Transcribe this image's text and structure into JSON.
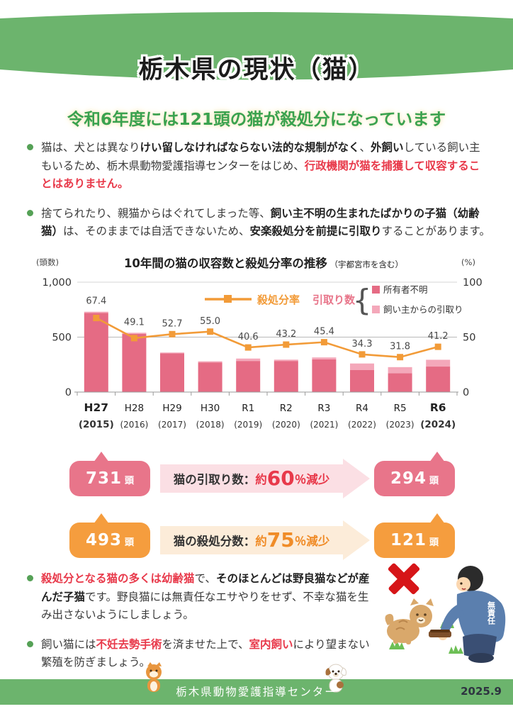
{
  "colors": {
    "header_green": "#6cb46d",
    "key_message_green": "#3aa24f",
    "bar_owner_unknown_pink": "#e56b84",
    "bar_owner_surrender_pink": "#f4a8ba",
    "line_orange": "#f29b38",
    "accent_red": "#e8394a",
    "callout_pink": "#e8758a",
    "callout_orange": "#f59d3e",
    "cross_red": "#d61518"
  },
  "header": {
    "title": "栃木県の現状（猫）"
  },
  "key_message": "令和6年度には121頭の猫が殺処分になっています",
  "bullets_top": [
    {
      "segments": [
        {
          "t": "猫は、犬とは異なり",
          "s": ""
        },
        {
          "t": "けい留しなければならない法的な規制がなく",
          "s": "b"
        },
        {
          "t": "、",
          "s": ""
        },
        {
          "t": "外飼い",
          "s": "b"
        },
        {
          "t": "している飼い主もいるため、栃木県動物愛護指導センターをはじめ、",
          "s": ""
        },
        {
          "t": "行政機関が猫を捕獲して収容することはありません。",
          "s": "rb"
        }
      ]
    },
    {
      "segments": [
        {
          "t": "捨てられたり、親猫からはぐれてしまった等、",
          "s": ""
        },
        {
          "t": "飼い主不明の生まれたばかりの子猫（幼齢猫）",
          "s": "b"
        },
        {
          "t": "は、そのままでは自活できないため、",
          "s": ""
        },
        {
          "t": "安楽殺処分を前提に引取り",
          "s": "b"
        },
        {
          "t": "することがあります。",
          "s": ""
        }
      ]
    }
  ],
  "chart_data": {
    "type": "bar",
    "combo": "stacked bars (left axis, head count) + line (right axis, %)",
    "title": "10年間の猫の収容数と殺処分率の推移",
    "title_note": "（宇都宮市を含む）",
    "left_axis_label": "(頭数)",
    "right_axis_label": "(%)",
    "left_ylim": [
      0,
      1000
    ],
    "right_ylim": [
      0,
      100
    ],
    "left_ticks": [
      "1,000",
      "500",
      "0"
    ],
    "right_ticks": [
      "100",
      "50",
      "0"
    ],
    "categories": [
      "H27",
      "H28",
      "H29",
      "H30",
      "R1",
      "R2",
      "R3",
      "R4",
      "R5",
      "R6"
    ],
    "category_years": [
      "(2015)",
      "(2016)",
      "(2017)",
      "(2018)",
      "(2019)",
      "(2020)",
      "(2021)",
      "(2022)",
      "(2023)",
      "(2024)"
    ],
    "emphasized_indices": [
      0,
      9
    ],
    "series": [
      {
        "name": "所有者不明",
        "color": "#e56b84",
        "values": [
          721,
          530,
          352,
          270,
          283,
          283,
          297,
          200,
          172,
          232
        ]
      },
      {
        "name": "飼い主からの引取り",
        "color": "#f4a8ba",
        "values": [
          10,
          10,
          8,
          10,
          22,
          12,
          18,
          60,
          55,
          62
        ]
      }
    ],
    "bar_totals": [
      731,
      540,
      360,
      280,
      305,
      295,
      315,
      260,
      227,
      294
    ],
    "line": {
      "name": "殺処分率",
      "color": "#f29b38",
      "values": [
        67.4,
        49.1,
        52.7,
        55.0,
        40.6,
        43.2,
        45.4,
        34.3,
        31.8,
        41.2
      ]
    },
    "legend": {
      "bars_group_label": "引取り数"
    }
  },
  "callouts": [
    {
      "name": "intake-decrease",
      "left_value": "731",
      "left_unit": "頭",
      "label": "猫の引取り数：",
      "approx": "約",
      "percent": "60",
      "suffix": "％減少",
      "right_value": "294",
      "right_unit": "頭",
      "bubble_color": "#e8758a",
      "arrow_bg": "#fbdfe4",
      "accent": "#e8394a"
    },
    {
      "name": "euthanasia-decrease",
      "left_value": "493",
      "left_unit": "頭",
      "label": "猫の殺処分数：",
      "approx": "約",
      "percent": "75",
      "suffix": "％減少",
      "right_value": "121",
      "right_unit": "頭",
      "bubble_color": "#f59d3e",
      "arrow_bg": "#fcecd9",
      "accent": "#f08c28"
    }
  ],
  "bullets_bottom": [
    {
      "segments": [
        {
          "t": "殺処分となる猫の多くは幼齢猫",
          "s": "rb"
        },
        {
          "t": "で、",
          "s": ""
        },
        {
          "t": "そのほとんどは野良猫などが産んだ子猫",
          "s": "b"
        },
        {
          "t": "です。野良猫には無責任なエサやりをせず、不幸な猫を生み出さないようにしましょう。",
          "s": ""
        }
      ]
    },
    {
      "segments": [
        {
          "t": "飼い猫には",
          "s": ""
        },
        {
          "t": "不妊去勢手術",
          "s": "rb"
        },
        {
          "t": "を済ませた上で、",
          "s": ""
        },
        {
          "t": "室内飼い",
          "s": "rb"
        },
        {
          "t": "により望まない繁殖を防ぎましょう。",
          "s": ""
        }
      ]
    }
  ],
  "illustration": {
    "back_label": "無責任"
  },
  "footer": {
    "org": "栃木県動物愛護指導センター",
    "date": "2025.9"
  }
}
